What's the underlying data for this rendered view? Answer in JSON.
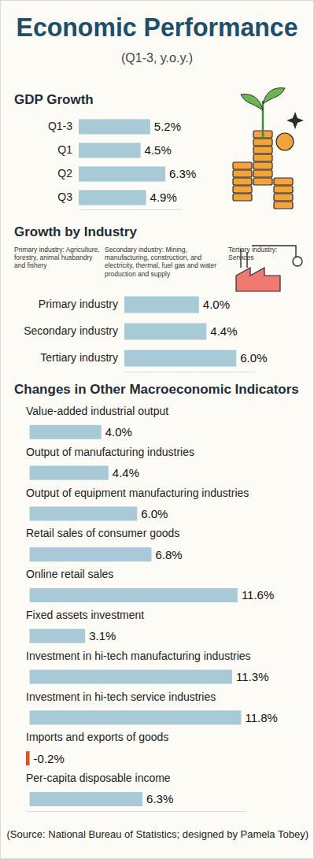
{
  "title": "Economic Performance",
  "subtitle": "(Q1-3, y.o.y.)",
  "source": "(Source: National Bureau of Statistics; designed by Pamela Tobey)",
  "chart_data": [
    {
      "type": "bar",
      "title": "GDP Growth",
      "orientation": "horizontal",
      "categories": [
        "Q1-3",
        "Q1",
        "Q2",
        "Q3"
      ],
      "values": [
        5.2,
        4.5,
        6.3,
        4.9
      ],
      "value_labels": [
        "5.2%",
        "4.5%",
        "6.3%",
        "4.9%"
      ],
      "color": "#a7cad6",
      "xlim": [
        0,
        7.5
      ],
      "xticks": [],
      "data_labels": true,
      "tick_labels": "y"
    },
    {
      "type": "bar",
      "title": "Growth by Industry",
      "orientation": "horizontal",
      "annotations": [
        "Primary industry: Agriculture, forestry, animal husbandry and fishery",
        "Secondary industry: Mining, manufacturing, construction, and electricity, thermal, fuel gas and water production and supply",
        "Tertiary industry: Services"
      ],
      "categories": [
        "Primary industry",
        "Secondary industry",
        "Tertiary industry"
      ],
      "values": [
        4.0,
        4.4,
        6.0
      ],
      "value_labels": [
        "4.0%",
        "4.4%",
        "6.0%"
      ],
      "color": "#a7cad6",
      "xlim": [
        0,
        7
      ],
      "xticks": [],
      "data_labels": true,
      "tick_labels": "y"
    },
    {
      "type": "bar",
      "title": "Changes in Other Macroeconomic Indicators",
      "orientation": "horizontal",
      "categories": [
        "Value-added industrial output",
        "Output of manufacturing industries",
        "Output of equipment manufacturing industries",
        "Retail sales of consumer goods",
        "Online retail sales",
        "Fixed assets investment",
        "Investment in hi-tech manufacturing industries",
        "Investment in hi-tech service industries",
        "Imports and exports of goods",
        "Per-capita disposable income"
      ],
      "values": [
        4.0,
        4.4,
        6.0,
        6.8,
        11.6,
        3.1,
        11.3,
        11.8,
        -0.2,
        6.3
      ],
      "value_labels": [
        "4.0%",
        "4.4%",
        "6.0%",
        "6.8%",
        "11.6%",
        "3.1%",
        "11.3%",
        "11.8%",
        "-0.2%",
        "6.3%"
      ],
      "colors": [
        "#a7cad6",
        "#a7cad6",
        "#a7cad6",
        "#a7cad6",
        "#a7cad6",
        "#a7cad6",
        "#a7cad6",
        "#a7cad6",
        "#e0531f",
        "#a7cad6"
      ],
      "xlim": [
        -0.2,
        12
      ],
      "xticks": [],
      "data_labels": true,
      "tick_labels": "y"
    }
  ]
}
